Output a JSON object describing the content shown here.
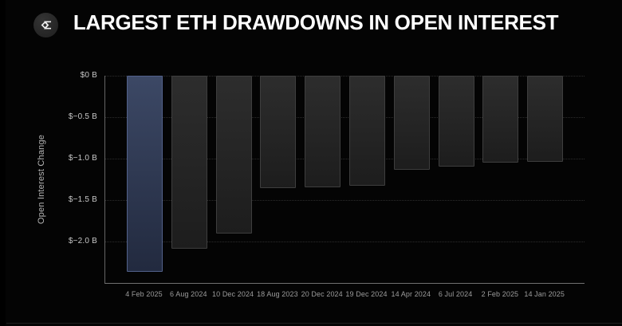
{
  "header": {
    "title": "LARGEST ETH DRAWDOWNS IN OPEN INTEREST",
    "logo_icon": "sigma-diamond-logo"
  },
  "chart_data": {
    "type": "bar",
    "title": "LARGEST ETH DRAWDOWNS IN OPEN INTEREST",
    "ylabel": "Open Interest Change",
    "xlabel": "",
    "unit": "billions USD",
    "categories": [
      "4 Feb 2025",
      "6 Aug 2024",
      "10 Dec 2024",
      "18 Aug 2023",
      "20 Dec 2024",
      "19 Dec 2024",
      "14 Apr 2024",
      "6 Jul 2024",
      "2 Feb 2025",
      "14 Jan 2025"
    ],
    "values": [
      -2.37,
      -2.09,
      -1.9,
      -1.36,
      -1.35,
      -1.33,
      -1.13,
      -1.1,
      -1.05,
      -1.04
    ],
    "ylim": [
      -2.5,
      0
    ],
    "yticks": [
      {
        "value": 0,
        "label": "$0 B"
      },
      {
        "value": -0.5,
        "label": "$−0.5 B"
      },
      {
        "value": -1.0,
        "label": "$−1.0 B"
      },
      {
        "value": -1.5,
        "label": "$−1.5 B"
      },
      {
        "value": -2.0,
        "label": "$−2.0 B"
      }
    ],
    "grid": "horizontal-dotted",
    "legend_position": "none",
    "highlight_index": 0,
    "colors": {
      "background": "#040404",
      "bar_top": "#2d2d2d",
      "bar_bottom": "#1d1d1d",
      "bar_border": "#3e3e3e",
      "highlight_top": "#3c4865",
      "highlight_bottom": "#222a3f",
      "highlight_border": "#52618a",
      "axis_line": "#6a6a6a",
      "tick_text": "#c7c7c7",
      "category_text": "#9c9c9c",
      "title_text": "#ffffff"
    }
  }
}
